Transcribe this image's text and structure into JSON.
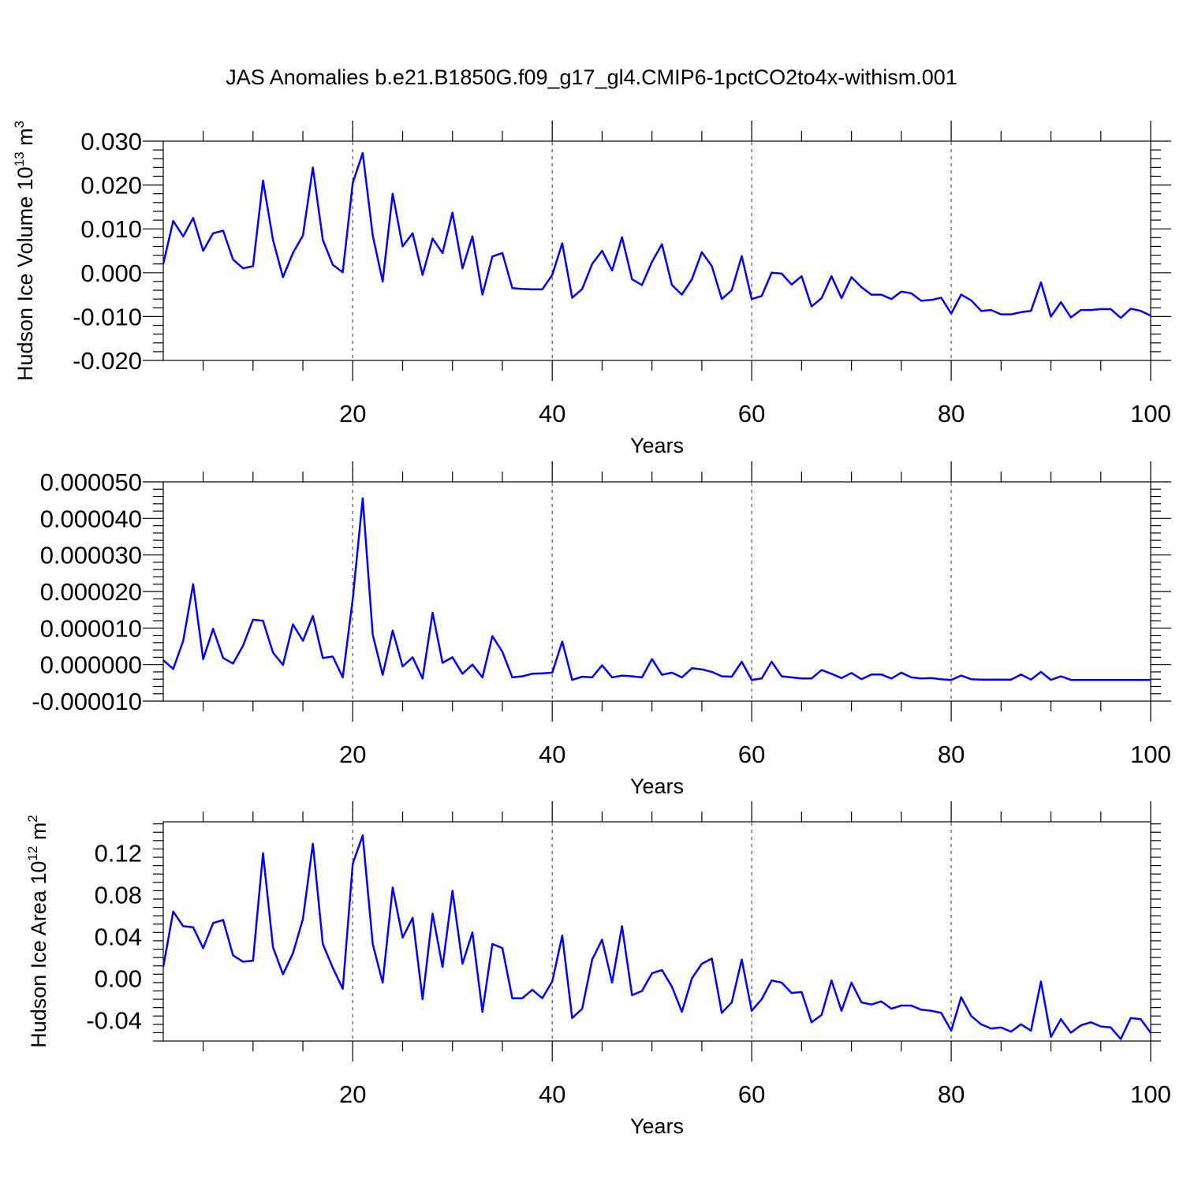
{
  "title": "JAS Anomalies b.e21.B1850G.f09_g17_gl4.CMIP6-1pctCO2to4x-withism.001",
  "line_color": "#0000ff",
  "chart_data": [
    {
      "type": "line",
      "ylabel": "Hudson Ice Volume 10",
      "ylabel_sup": "13",
      "ylabel_unit": " m",
      "ylabel_unit_sup": "3",
      "xlabel": "Years",
      "xlim": [
        1,
        100
      ],
      "ylim": [
        -0.02,
        0.03
      ],
      "xticks": [
        20,
        40,
        60,
        80,
        100
      ],
      "xtick_labels": [
        "20",
        "40",
        "60",
        "80",
        "100"
      ],
      "yticks": [
        -0.02,
        -0.01,
        0,
        0.01,
        0.02,
        0.03
      ],
      "ytick_labels": [
        "-0.020",
        "-0.010",
        "0.000",
        "0.010",
        "0.020",
        "0.030"
      ],
      "grid_x": [
        20,
        40,
        60,
        80
      ],
      "x": [
        1,
        2,
        3,
        4,
        5,
        6,
        7,
        8,
        9,
        10,
        11,
        12,
        13,
        14,
        15,
        16,
        17,
        18,
        19,
        20,
        21,
        22,
        23,
        24,
        25,
        26,
        27,
        28,
        29,
        30,
        31,
        32,
        33,
        34,
        35,
        36,
        37,
        38,
        39,
        40,
        41,
        42,
        43,
        44,
        45,
        46,
        47,
        48,
        49,
        50,
        51,
        52,
        53,
        54,
        55,
        56,
        57,
        58,
        59,
        60,
        61,
        62,
        63,
        64,
        65,
        66,
        67,
        68,
        69,
        70,
        71,
        72,
        73,
        74,
        75,
        76,
        77,
        78,
        79,
        80,
        81,
        82,
        83,
        84,
        85,
        86,
        87,
        88,
        89,
        90,
        91,
        92,
        93,
        94,
        95,
        96,
        97,
        98,
        99,
        100
      ],
      "y": [
        0.002,
        0.0118,
        0.0083,
        0.0125,
        0.005,
        0.009,
        0.0096,
        0.003,
        0.001,
        0.0015,
        0.021,
        0.0075,
        -0.001,
        0.0045,
        0.0085,
        0.024,
        0.0075,
        0.0018,
        0.0001,
        0.0205,
        0.0273,
        0.0085,
        -0.002,
        0.018,
        0.006,
        0.009,
        -0.0005,
        0.0078,
        0.0045,
        0.0137,
        0.001,
        0.0083,
        -0.005,
        0.0037,
        0.0045,
        -0.0035,
        -0.0037,
        -0.0038,
        -0.0038,
        -0.0005,
        0.0067,
        -0.0057,
        -0.0037,
        0.002,
        0.005,
        0.0005,
        0.0081,
        -0.0015,
        -0.0028,
        0.0025,
        0.0065,
        -0.0028,
        -0.005,
        -0.0015,
        0.0047,
        0.0015,
        -0.006,
        -0.004,
        0.0038,
        -0.006,
        -0.0053,
        0,
        -0.0002,
        -0.0027,
        -0.0008,
        -0.0077,
        -0.0058,
        -0.0008,
        -0.0058,
        -0.001,
        -0.0033,
        -0.005,
        -0.005,
        -0.006,
        -0.0043,
        -0.0047,
        -0.0064,
        -0.0062,
        -0.0057,
        -0.0093,
        -0.005,
        -0.0063,
        -0.0087,
        -0.0085,
        -0.0095,
        -0.0095,
        -0.009,
        -0.0087,
        -0.0022,
        -0.01,
        -0.0067,
        -0.0102,
        -0.0085,
        -0.0085,
        -0.0083,
        -0.0083,
        -0.0103,
        -0.0082,
        -0.0087,
        -0.0098
      ]
    },
    {
      "type": "line",
      "ylabel": "",
      "xlabel": "Years",
      "xlim": [
        1,
        100
      ],
      "ylim": [
        -1e-05,
        5e-05
      ],
      "xticks": [
        20,
        40,
        60,
        80,
        100
      ],
      "xtick_labels": [
        "20",
        "40",
        "60",
        "80",
        "100"
      ],
      "yticks": [
        -1e-05,
        0,
        1e-05,
        2e-05,
        3e-05,
        4e-05,
        5e-05
      ],
      "ytick_labels": [
        "-0.000010",
        "0.000000",
        "0.000010",
        "0.000020",
        "0.000030",
        "0.000040",
        "0.000050"
      ],
      "grid_x": [
        20,
        40,
        60,
        80
      ],
      "x": [
        1,
        2,
        3,
        4,
        5,
        6,
        7,
        8,
        9,
        10,
        11,
        12,
        13,
        14,
        15,
        16,
        17,
        18,
        19,
        20,
        21,
        22,
        23,
        24,
        25,
        26,
        27,
        28,
        29,
        30,
        31,
        32,
        33,
        34,
        35,
        36,
        37,
        38,
        39,
        40,
        41,
        42,
        43,
        44,
        45,
        46,
        47,
        48,
        49,
        50,
        51,
        52,
        53,
        54,
        55,
        56,
        57,
        58,
        59,
        60,
        61,
        62,
        63,
        64,
        65,
        66,
        67,
        68,
        69,
        70,
        71,
        72,
        73,
        74,
        75,
        76,
        77,
        78,
        79,
        80,
        81,
        82,
        83,
        84,
        85,
        86,
        87,
        88,
        89,
        90,
        91,
        92,
        93,
        94,
        95,
        96,
        97,
        98,
        99,
        100
      ],
      "y": [
        1.2e-06,
        -1.2e-06,
        6.5e-06,
        2.2e-05,
        1.5e-06,
        9.8e-06,
        1.8e-06,
        3e-07,
        5.2e-06,
        1.23e-05,
        1.2e-05,
        3.3e-06,
        -1e-07,
        1.1e-05,
        6.5e-06,
        1.33e-05,
        1.8e-06,
        2.2e-06,
        -3.5e-06,
        1.8e-05,
        4.55e-05,
        8.2e-06,
        -2.8e-06,
        9.3e-06,
        -5e-07,
        2e-06,
        -3.8e-06,
        1.42e-05,
        5e-07,
        2e-06,
        -2.5e-06,
        0,
        -3.5e-06,
        7.8e-06,
        3.5e-06,
        -3.5e-06,
        -3.2e-06,
        -2.5e-06,
        -2.4e-06,
        -2.2e-06,
        6.3e-06,
        -4.2e-06,
        -3.3e-06,
        -3.5e-06,
        -2e-07,
        -3.5e-06,
        -3e-06,
        -3.2e-06,
        -3.5e-06,
        1.5e-06,
        -2.8e-06,
        -2.2e-06,
        -3.5e-06,
        -1e-06,
        -1.3e-06,
        -2e-06,
        -3.2e-06,
        -3.3e-06,
        8e-07,
        -4.2e-06,
        -3.8e-06,
        8e-07,
        -3.2e-06,
        -3.5e-06,
        -3.8e-06,
        -3.8e-06,
        -1.5e-06,
        -2.5e-06,
        -3.7e-06,
        -2.3e-06,
        -4e-06,
        -2.7e-06,
        -2.7e-06,
        -3.8e-06,
        -2.2e-06,
        -3.5e-06,
        -3.8e-06,
        -3.7e-06,
        -4e-06,
        -4.2e-06,
        -3e-06,
        -4e-06,
        -4.1e-06,
        -4.1e-06,
        -4.1e-06,
        -4.1e-06,
        -2.7e-06,
        -4.1e-06,
        -2e-06,
        -4.2e-06,
        -3.2e-06,
        -4.2e-06,
        -4.2e-06,
        -4.2e-06,
        -4.2e-06,
        -4.2e-06,
        -4.2e-06,
        -4.2e-06,
        -4.2e-06,
        -4.2e-06
      ]
    },
    {
      "type": "line",
      "ylabel": "Hudson Ice Area 10",
      "ylabel_sup": "12",
      "ylabel_unit": " m",
      "ylabel_unit_sup": "2",
      "xlabel": "Years",
      "xlim": [
        1,
        100
      ],
      "ylim": [
        -0.06,
        0.15
      ],
      "xticks": [
        20,
        40,
        60,
        80,
        100
      ],
      "xtick_labels": [
        "20",
        "40",
        "60",
        "80",
        "100"
      ],
      "yticks": [
        -0.04,
        0,
        0.04,
        0.08,
        0.12
      ],
      "ytick_labels": [
        "-0.04",
        "0.00",
        "0.04",
        "0.08",
        "0.12"
      ],
      "grid_x": [
        20,
        40,
        60,
        80
      ],
      "x": [
        1,
        2,
        3,
        4,
        5,
        6,
        7,
        8,
        9,
        10,
        11,
        12,
        13,
        14,
        15,
        16,
        17,
        18,
        19,
        20,
        21,
        22,
        23,
        24,
        25,
        26,
        27,
        28,
        29,
        30,
        31,
        32,
        33,
        34,
        35,
        36,
        37,
        38,
        39,
        40,
        41,
        42,
        43,
        44,
        45,
        46,
        47,
        48,
        49,
        50,
        51,
        52,
        53,
        54,
        55,
        56,
        57,
        58,
        59,
        60,
        61,
        62,
        63,
        64,
        65,
        66,
        67,
        68,
        69,
        70,
        71,
        72,
        73,
        74,
        75,
        76,
        77,
        78,
        79,
        80,
        81,
        82,
        83,
        84,
        85,
        86,
        87,
        88,
        89,
        90,
        91,
        92,
        93,
        94,
        95,
        96,
        97,
        98,
        99,
        100
      ],
      "y": [
        0.011,
        0.064,
        0.05,
        0.049,
        0.029,
        0.053,
        0.056,
        0.022,
        0.016,
        0.017,
        0.12,
        0.03,
        0.004,
        0.024,
        0.057,
        0.129,
        0.033,
        0.01,
        -0.01,
        0.11,
        0.137,
        0.033,
        -0.004,
        0.087,
        0.039,
        0.058,
        -0.02,
        0.062,
        0.011,
        0.084,
        0.014,
        0.044,
        -0.032,
        0.033,
        0.029,
        -0.019,
        -0.019,
        -0.011,
        -0.019,
        -0.003,
        0.041,
        -0.038,
        -0.029,
        0.018,
        0.037,
        -0.004,
        0.05,
        -0.016,
        -0.012,
        0.005,
        0.008,
        -0.008,
        -0.032,
        0,
        0.014,
        0.019,
        -0.033,
        -0.023,
        0.018,
        -0.031,
        -0.02,
        -0.002,
        -0.004,
        -0.014,
        -0.013,
        -0.042,
        -0.035,
        -0.002,
        -0.031,
        -0.004,
        -0.023,
        -0.025,
        -0.022,
        -0.029,
        -0.026,
        -0.026,
        -0.03,
        -0.031,
        -0.033,
        -0.05,
        -0.018,
        -0.036,
        -0.044,
        -0.048,
        -0.047,
        -0.051,
        -0.044,
        -0.05,
        -0.003,
        -0.056,
        -0.039,
        -0.052,
        -0.045,
        -0.042,
        -0.046,
        -0.047,
        -0.058,
        -0.038,
        -0.039,
        -0.052
      ]
    }
  ]
}
